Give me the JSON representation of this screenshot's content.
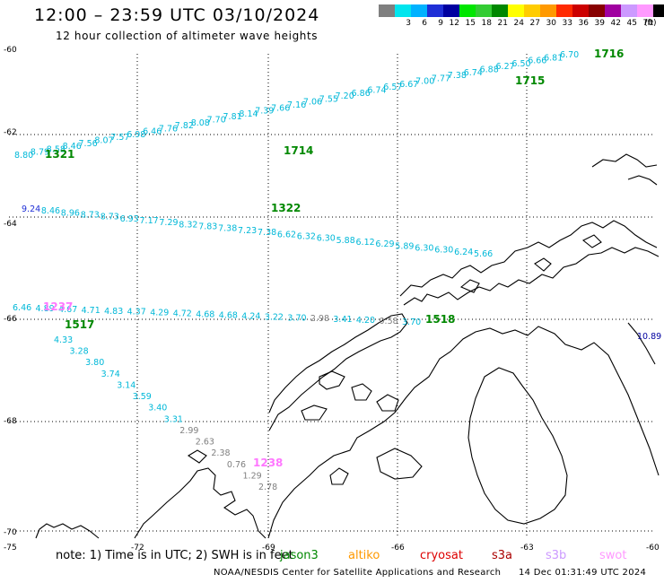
{
  "header": {
    "title": "12:00 – 23:59 UTC 03/10/2024",
    "subtitle": "12 hour collection of altimeter wave heights"
  },
  "legend": {
    "unit": "(ft)",
    "swatches": [
      {
        "color": "#7f7f7f",
        "label": ""
      },
      {
        "color": "#00e5ee",
        "label": "3"
      },
      {
        "color": "#00b2ff",
        "label": "6"
      },
      {
        "color": "#1f2fd6",
        "label": "9"
      },
      {
        "color": "#0000a0",
        "label": "12"
      },
      {
        "color": "#00e600",
        "label": "15"
      },
      {
        "color": "#33cc33",
        "label": "18"
      },
      {
        "color": "#008800",
        "label": "21"
      },
      {
        "color": "#ffff00",
        "label": "24"
      },
      {
        "color": "#ffcc00",
        "label": "27"
      },
      {
        "color": "#ff9900",
        "label": "30"
      },
      {
        "color": "#ff2a00",
        "label": "33"
      },
      {
        "color": "#cc0000",
        "label": "36"
      },
      {
        "color": "#880000",
        "label": "39"
      },
      {
        "color": "#a000a0",
        "label": "42"
      },
      {
        "color": "#cc99ff",
        "label": "45"
      },
      {
        "color": "#ff99ff",
        "label": "70"
      },
      {
        "color": "#000000",
        "label": ""
      }
    ]
  },
  "axes": {
    "lat_labels": [
      "-60",
      "-62",
      "-64",
      "-66",
      "-68",
      "-70"
    ],
    "lon_labels": [
      "-75",
      "-72",
      "-69",
      "-66",
      "-63",
      "-60"
    ]
  },
  "map": {
    "track_labels": [
      {
        "text": "1716",
        "color": "#008800"
      },
      {
        "text": "1715",
        "color": "#008800"
      },
      {
        "text": "1714",
        "color": "#008800"
      },
      {
        "text": "1321",
        "color": "#008800"
      },
      {
        "text": "1322",
        "color": "#008800"
      },
      {
        "text": "1237",
        "color": "#ff77ff"
      },
      {
        "text": "1517",
        "color": "#008800"
      },
      {
        "text": "1518",
        "color": "#008800"
      },
      {
        "text": "1238",
        "color": "#ff77ff"
      }
    ],
    "track_1716": [
      "6.70",
      "6.81",
      "6.66",
      "6.50",
      "6.27",
      "6.88",
      "6.74",
      "7.38",
      "7.77",
      "7.00",
      "6.67",
      "6.57",
      "6.74",
      "6.86",
      "7.20",
      "7.55",
      "7.06",
      "7.16",
      "7.66",
      "7.39",
      "8.14",
      "7.81",
      "7.70",
      "8.08",
      "7.82",
      "7.76",
      "6.46",
      "6.98",
      "7.57",
      "8.07",
      "7.56",
      "8.46",
      "8.58",
      "8.79",
      "8.80"
    ],
    "track_1322": [
      "9.24",
      "8.46",
      "8.96",
      "8.73",
      "8.73",
      "6.93",
      "7.17",
      "7.29",
      "8.32",
      "7.83",
      "7.38",
      "7.23",
      "7.38",
      "6.62",
      "6.32",
      "6.30",
      "5.88",
      "6.12",
      "6.29",
      "5.89",
      "6.30",
      "6.30",
      "6.24",
      "5.66"
    ],
    "track_1517": [
      "6.46",
      "4.89",
      "4.67",
      "4.71",
      "4.83",
      "4.37",
      "4.29",
      "4.72",
      "4.68",
      "4.68",
      "4.24",
      "3.22",
      "3.70",
      "2.98",
      "3.41",
      "4.20",
      "0.58",
      "3.70"
    ],
    "track_1238": [
      "4.33",
      "3.28",
      "3.80",
      "3.74",
      "3.14",
      "3.59",
      "3.40",
      "3.31",
      "2.99",
      "2.63",
      "2.38",
      "0.76",
      "1.29",
      "2.78"
    ],
    "far_right_value": "10.89"
  },
  "footer": {
    "note": "note:  1) Time is in UTC;  2) SWH is in feet",
    "satellites": [
      {
        "name": "jason3",
        "color": "#008800"
      },
      {
        "name": "altiko",
        "color": "#ff9900"
      },
      {
        "name": "cryosat",
        "color": "#dd0000"
      },
      {
        "name": "s3a",
        "color": "#aa0000"
      },
      {
        "name": "s3b",
        "color": "#cc99ff"
      },
      {
        "name": "swot",
        "color": "#ff99ff"
      }
    ],
    "credit": "NOAA/NESDIS Center for Satellite Applications and Research",
    "timestamp": "14 Dec 01:31:49 UTC 2024"
  }
}
